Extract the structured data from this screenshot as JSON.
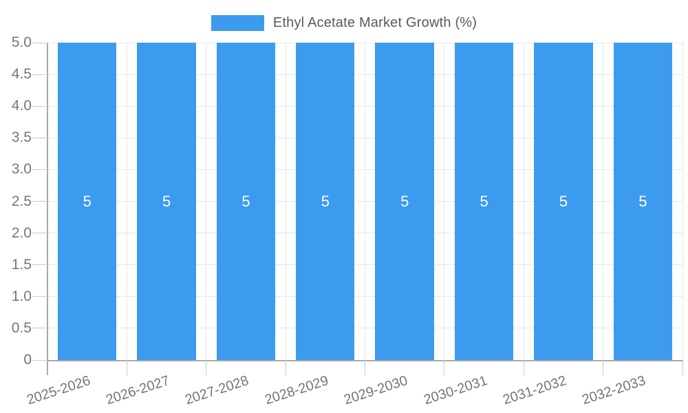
{
  "chart_data": {
    "type": "bar",
    "title": "Ethyl Acetate Market Growth (%)",
    "legend_entries": [
      "Ethyl Acetate Market Growth (%)"
    ],
    "legend_position": "top",
    "categories": [
      "2025-2026",
      "2026-2027",
      "2027-2028",
      "2028-2029",
      "2029-2030",
      "2030-2031",
      "2031-2032",
      "2032-2033"
    ],
    "values": [
      5,
      5,
      5,
      5,
      5,
      5,
      5,
      5
    ],
    "bar_value_labels": [
      "5",
      "5",
      "5",
      "5",
      "5",
      "5",
      "5",
      "5"
    ],
    "xlabel": "",
    "ylabel": "",
    "ylim": [
      0,
      5
    ],
    "ytick_labels": [
      "0",
      "0.5",
      "1.0",
      "1.5",
      "2.0",
      "2.5",
      "3.0",
      "3.5",
      "4.0",
      "4.5",
      "5.0"
    ],
    "grid": true,
    "colors": {
      "bar": "#3C9BEE",
      "grid": "#E6E6E6",
      "axis": "#A8A8A8",
      "tick": "#C9C9C9",
      "axis_label": "#757575",
      "legend_text": "#58595B",
      "value_label": "#FFFFFF",
      "background": "#FFFFFF"
    }
  }
}
